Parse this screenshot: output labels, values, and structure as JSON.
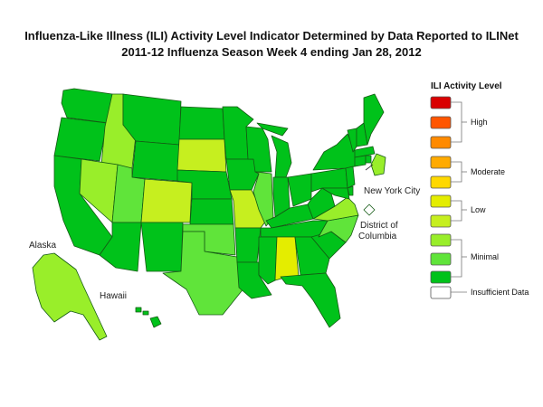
{
  "title": "Influenza-Like Illness (ILI) Activity Level Indicator Determined by Data Reported to ILINet",
  "subtitle": "2011-12  Influenza Season Week  4 ending Jan 28, 2012",
  "colors": {
    "level_10": "#d90000",
    "level_9": "#ff5500",
    "level_8": "#ff8a00",
    "level_7": "#ffaa00",
    "level_6": "#ffd800",
    "level_5": "#e4ed00",
    "level_4": "#c6ef1f",
    "level_3": "#99ee2a",
    "level_2": "#60e43a",
    "level_1": "#00c21a",
    "insufficient": "#ffffff"
  },
  "map_labels": {
    "alaska": "Alaska",
    "hawaii": "Hawaii",
    "nyc": "New York City",
    "dc_line1": "District of",
    "dc_line2": "Columbia"
  },
  "legend": {
    "title": "ILI Activity Level",
    "groups": [
      "High",
      "Moderate",
      "Low",
      "Minimal",
      "Insufficient Data"
    ]
  },
  "state_levels": {
    "WA": 1,
    "OR": 1,
    "CA": 1,
    "ID": 3,
    "NV": 3,
    "MT": 1,
    "WY": 1,
    "UT": 2,
    "CO": 4,
    "AZ": 1,
    "NM": 1,
    "ND": 1,
    "SD": 4,
    "NE": 1,
    "KS": 1,
    "OK": 2,
    "TX": 2,
    "MN": 1,
    "IA": 1,
    "MO": 4,
    "AR": 1,
    "LA": 1,
    "WI": 1,
    "IL": 2,
    "MI": 1,
    "IN": 1,
    "OH": 1,
    "KY": 1,
    "TN": 1,
    "MS": 1,
    "AL": 5,
    "GA": 1,
    "FL": 1,
    "SC": 1,
    "NC": 2,
    "VA": 3,
    "WV": 1,
    "PA": 1,
    "NY": 1,
    "VT": 1,
    "NH": 1,
    "ME": 1,
    "MA": 1,
    "CT": 1,
    "RI": 1,
    "NJ": 1,
    "DE": 1,
    "MD": 1,
    "AK": 3,
    "HI": 1,
    "NYC": 3
  }
}
